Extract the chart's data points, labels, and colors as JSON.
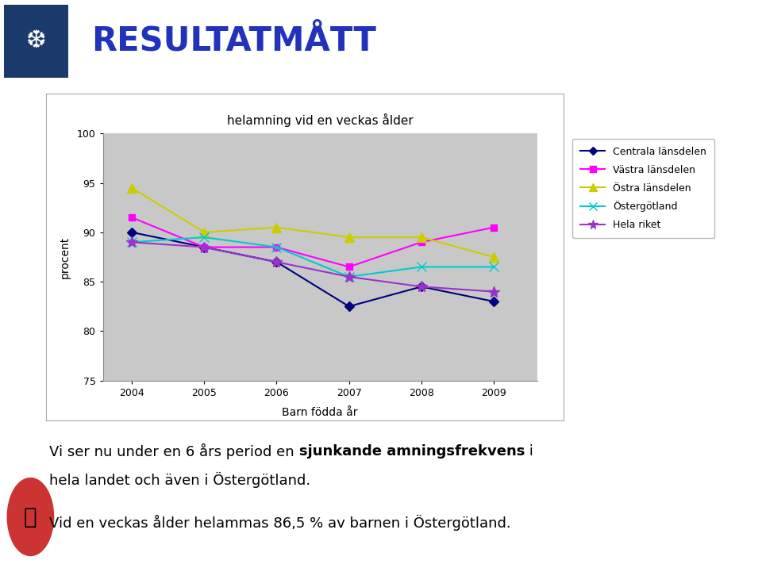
{
  "title": "helamning vid en veckas ålder",
  "xlabel": "Barn födda år",
  "ylabel": "procent",
  "years": [
    2004,
    2005,
    2006,
    2007,
    2008,
    2009
  ],
  "ylim": [
    75,
    100
  ],
  "yticks": [
    75,
    80,
    85,
    90,
    95,
    100
  ],
  "series": {
    "Centrala länsdelen": {
      "values": [
        90.0,
        88.5,
        87.0,
        82.5,
        84.5,
        83.0
      ],
      "color": "#000080",
      "marker": "D",
      "markersize": 6,
      "linewidth": 1.5
    },
    "Västra länsdelen": {
      "values": [
        91.5,
        88.5,
        88.5,
        86.5,
        89.0,
        90.5
      ],
      "color": "#FF00FF",
      "marker": "s",
      "markersize": 6,
      "linewidth": 1.5
    },
    "Östra länsdelen": {
      "values": [
        94.5,
        90.0,
        90.5,
        89.5,
        89.5,
        87.5
      ],
      "color": "#CCCC00",
      "marker": "^",
      "markersize": 8,
      "linewidth": 1.5
    },
    "Östergötland": {
      "values": [
        89.0,
        89.5,
        88.5,
        85.5,
        86.5,
        86.5
      ],
      "color": "#00CCCC",
      "marker": "x",
      "markersize": 8,
      "linewidth": 1.5
    },
    "Hela riket": {
      "values": [
        89.0,
        88.5,
        87.0,
        85.5,
        84.5,
        84.0
      ],
      "color": "#9933CC",
      "marker": "*",
      "markersize": 10,
      "linewidth": 1.5
    }
  },
  "header_bg": "#bcc4d8",
  "header_text": "RESULTATMÅTT",
  "header_text_color": "#2233BB",
  "plot_bg": "#c8c8c8",
  "panel_bg": "#ffffff",
  "outer_bg": "#ffffff",
  "panel_border": "#aaaaaa"
}
